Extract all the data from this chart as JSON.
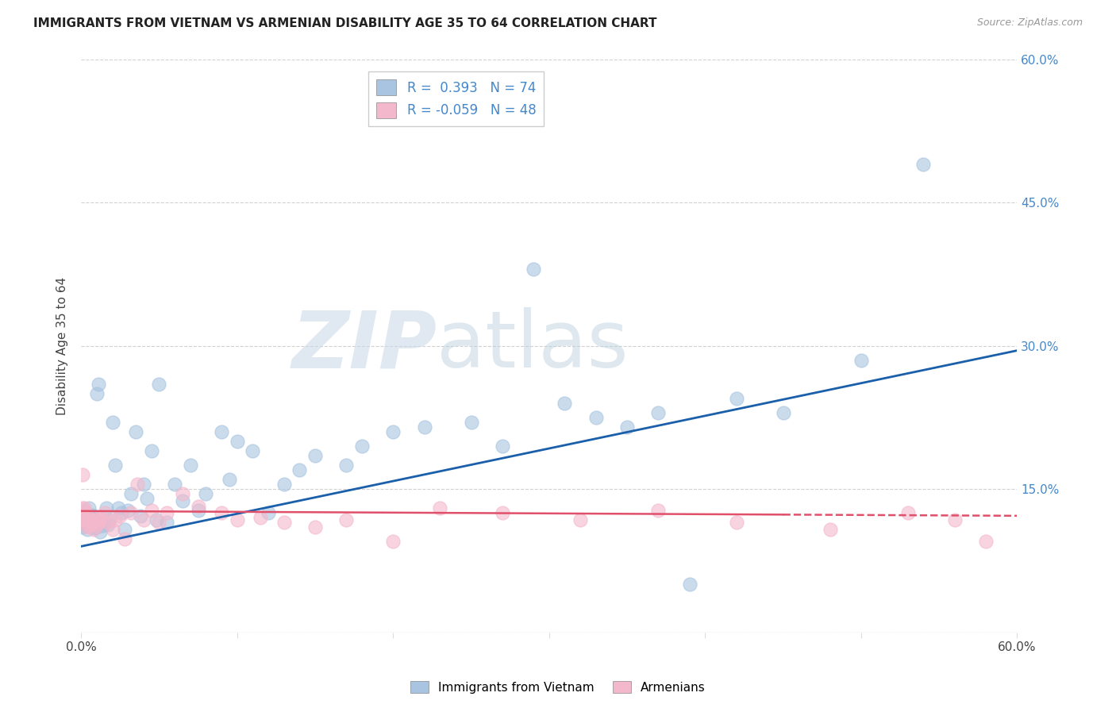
{
  "title": "IMMIGRANTS FROM VIETNAM VS ARMENIAN DISABILITY AGE 35 TO 64 CORRELATION CHART",
  "source": "Source: ZipAtlas.com",
  "ylabel": "Disability Age 35 to 64",
  "xlim": [
    0.0,
    0.6
  ],
  "ylim": [
    0.0,
    0.6
  ],
  "r_vietnam": 0.393,
  "n_vietnam": 74,
  "r_armenian": -0.059,
  "n_armenian": 48,
  "color_vietnam": "#a8c4e0",
  "color_armenian": "#f4b8cc",
  "line_color_vietnam": "#1a5faa",
  "line_color_armenian": "#e0506a",
  "watermark_zip": "ZIP",
  "watermark_atlas": "atlas",
  "viet_line_x0": 0.0,
  "viet_line_y0": 0.09,
  "viet_line_x1": 0.6,
  "viet_line_y1": 0.295,
  "arm_line_x0": 0.0,
  "arm_line_y0": 0.127,
  "arm_line_x1": 0.6,
  "arm_line_y1": 0.122,
  "arm_line_dash_x0": 0.45,
  "arm_line_dash_x1": 0.6,
  "vietnam_x": [
    0.001,
    0.001,
    0.002,
    0.002,
    0.002,
    0.003,
    0.003,
    0.003,
    0.004,
    0.004,
    0.005,
    0.005,
    0.006,
    0.006,
    0.007,
    0.007,
    0.008,
    0.008,
    0.009,
    0.009,
    0.01,
    0.01,
    0.011,
    0.012,
    0.013,
    0.014,
    0.015,
    0.016,
    0.017,
    0.018,
    0.02,
    0.022,
    0.024,
    0.026,
    0.028,
    0.03,
    0.032,
    0.035,
    0.038,
    0.04,
    0.042,
    0.045,
    0.048,
    0.05,
    0.055,
    0.06,
    0.065,
    0.07,
    0.075,
    0.08,
    0.09,
    0.095,
    0.1,
    0.11,
    0.12,
    0.13,
    0.14,
    0.15,
    0.17,
    0.18,
    0.2,
    0.22,
    0.25,
    0.27,
    0.29,
    0.31,
    0.33,
    0.35,
    0.37,
    0.39,
    0.42,
    0.45,
    0.5,
    0.54
  ],
  "vietnam_y": [
    0.11,
    0.128,
    0.118,
    0.122,
    0.115,
    0.125,
    0.112,
    0.119,
    0.108,
    0.121,
    0.13,
    0.116,
    0.113,
    0.12,
    0.117,
    0.123,
    0.109,
    0.115,
    0.114,
    0.118,
    0.25,
    0.11,
    0.26,
    0.105,
    0.115,
    0.112,
    0.116,
    0.13,
    0.113,
    0.118,
    0.22,
    0.175,
    0.13,
    0.125,
    0.108,
    0.128,
    0.145,
    0.21,
    0.122,
    0.155,
    0.14,
    0.19,
    0.118,
    0.26,
    0.115,
    0.155,
    0.138,
    0.175,
    0.128,
    0.145,
    0.21,
    0.16,
    0.2,
    0.19,
    0.125,
    0.155,
    0.17,
    0.185,
    0.175,
    0.195,
    0.21,
    0.215,
    0.22,
    0.195,
    0.38,
    0.24,
    0.225,
    0.215,
    0.23,
    0.05,
    0.245,
    0.23,
    0.285,
    0.49
  ],
  "armenian_x": [
    0.001,
    0.001,
    0.002,
    0.002,
    0.003,
    0.003,
    0.004,
    0.004,
    0.005,
    0.005,
    0.006,
    0.007,
    0.008,
    0.009,
    0.01,
    0.011,
    0.012,
    0.013,
    0.015,
    0.017,
    0.02,
    0.022,
    0.025,
    0.028,
    0.032,
    0.036,
    0.04,
    0.045,
    0.05,
    0.055,
    0.065,
    0.075,
    0.09,
    0.1,
    0.115,
    0.13,
    0.15,
    0.17,
    0.2,
    0.23,
    0.27,
    0.32,
    0.37,
    0.42,
    0.48,
    0.53,
    0.56,
    0.58
  ],
  "armenian_y": [
    0.165,
    0.13,
    0.118,
    0.13,
    0.122,
    0.125,
    0.11,
    0.118,
    0.112,
    0.12,
    0.113,
    0.115,
    0.108,
    0.118,
    0.112,
    0.115,
    0.12,
    0.118,
    0.125,
    0.115,
    0.108,
    0.118,
    0.122,
    0.098,
    0.125,
    0.155,
    0.118,
    0.128,
    0.115,
    0.125,
    0.145,
    0.132,
    0.125,
    0.118,
    0.12,
    0.115,
    0.11,
    0.118,
    0.095,
    0.13,
    0.125,
    0.118,
    0.128,
    0.115,
    0.108,
    0.125,
    0.118,
    0.095
  ]
}
